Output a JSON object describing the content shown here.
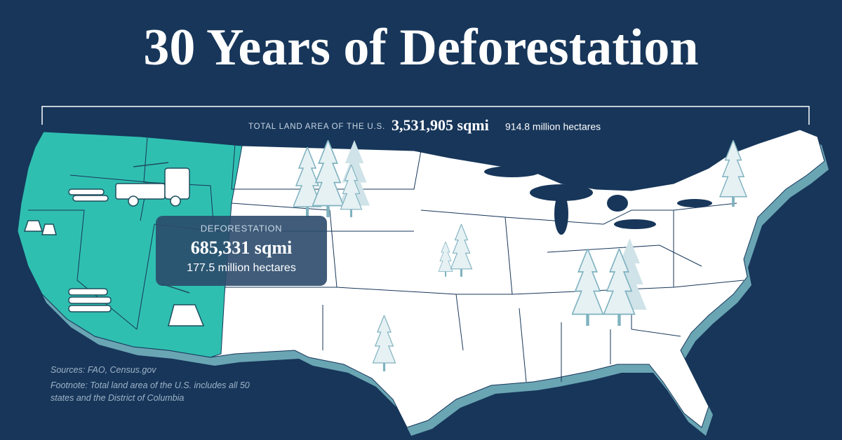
{
  "header": {
    "title": "30 Years of Deforestation"
  },
  "total": {
    "label": "TOTAL LAND AREA OF THE U.S.",
    "sqmi": "3,531,905 sqmi",
    "hectares": "914.8 million hectares"
  },
  "deforestation": {
    "label": "DEFORESTATION",
    "sqmi": "685,331 sqmi",
    "hectares": "177.5 million hectares"
  },
  "notes": {
    "sources": "Sources: FAO, Census.gov",
    "footnote": "Footnote: Total land area of the U.S. includes all 50 states and the District of Columbia"
  }
}
